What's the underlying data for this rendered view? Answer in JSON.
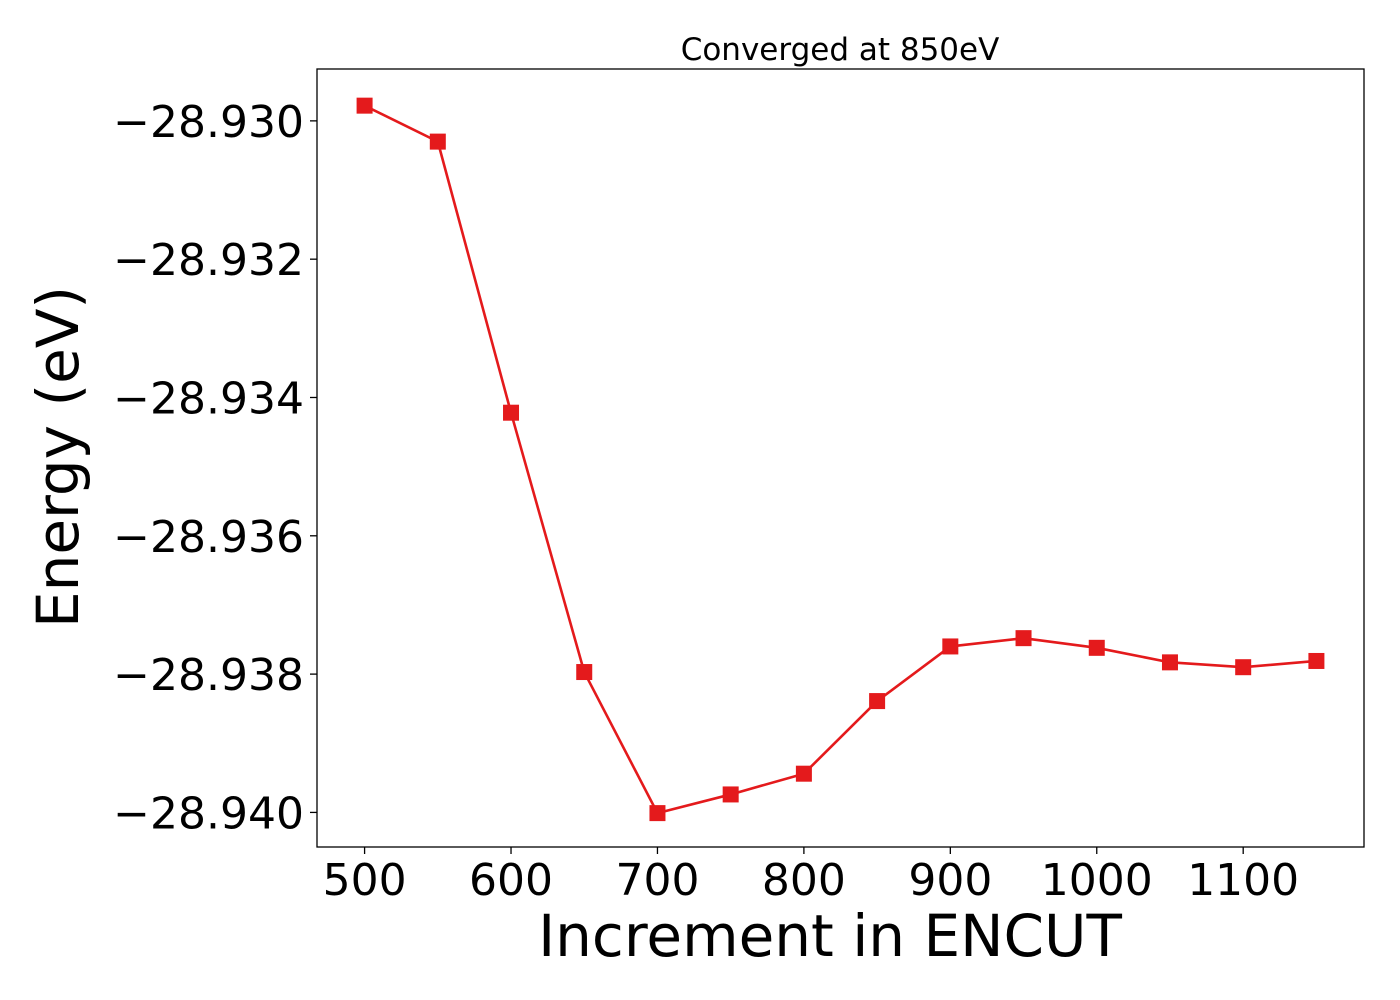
{
  "chart_data": {
    "type": "line",
    "title": "Converged at 850eV",
    "xlabel": "Increment in ENCUT",
    "ylabel": "Energy (eV)",
    "xlim": [
      467.5,
      1182.5
    ],
    "ylim": [
      -28.9405,
      -28.92925
    ],
    "xticks": [
      500,
      600,
      700,
      800,
      900,
      1000,
      1100
    ],
    "xtick_labels": [
      "500",
      "600",
      "700",
      "800",
      "900",
      "1000",
      "1100"
    ],
    "yticks": [
      -28.93,
      -28.932,
      -28.934,
      -28.936,
      -28.938,
      -28.94
    ],
    "ytick_labels": [
      "−28.930",
      "−28.932",
      "−28.934",
      "−28.936",
      "−28.938",
      "−28.940"
    ],
    "grid": false,
    "legend": "none",
    "series": [
      {
        "color": "#e41a1c",
        "marker": "square",
        "x": [
          500,
          550,
          600,
          650,
          700,
          750,
          800,
          850,
          900,
          950,
          1000,
          1050,
          1100,
          1150
        ],
        "y": [
          -28.92978,
          -28.9303,
          -28.93422,
          -28.93797,
          -28.94001,
          -28.93974,
          -28.93944,
          -28.93839,
          -28.9376,
          -28.93748,
          -28.93762,
          -28.93783,
          -28.9379,
          -28.93781
        ]
      }
    ]
  }
}
